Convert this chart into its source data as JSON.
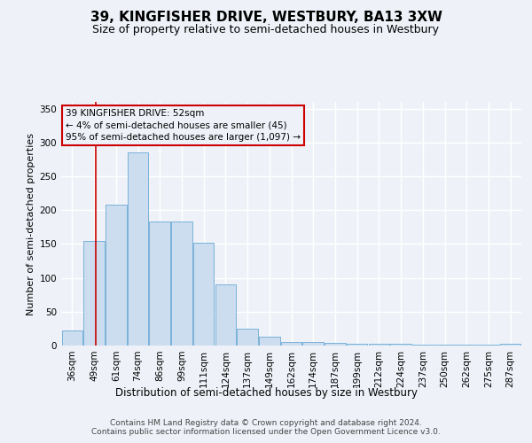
{
  "title": "39, KINGFISHER DRIVE, WESTBURY, BA13 3XW",
  "subtitle": "Size of property relative to semi-detached houses in Westbury",
  "xlabel": "Distribution of semi-detached houses by size in Westbury",
  "ylabel": "Number of semi-detached properties",
  "footer1": "Contains HM Land Registry data © Crown copyright and database right 2024.",
  "footer2": "Contains public sector information licensed under the Open Government Licence v3.0.",
  "annotation_line1": "39 KINGFISHER DRIVE: 52sqm",
  "annotation_line2": "← 4% of semi-detached houses are smaller (45)",
  "annotation_line3": "95% of semi-detached houses are larger (1,097) →",
  "bar_labels": [
    "36sqm",
    "49sqm",
    "61sqm",
    "74sqm",
    "86sqm",
    "99sqm",
    "111sqm",
    "124sqm",
    "137sqm",
    "149sqm",
    "162sqm",
    "174sqm",
    "187sqm",
    "199sqm",
    "212sqm",
    "224sqm",
    "237sqm",
    "250sqm",
    "262sqm",
    "275sqm",
    "287sqm"
  ],
  "bar_values": [
    22,
    155,
    208,
    285,
    183,
    183,
    152,
    90,
    25,
    13,
    5,
    5,
    4,
    2,
    2,
    2,
    1,
    1,
    1,
    1,
    2
  ],
  "bar_color": "#ccddf0",
  "bar_edge_color": "#6aaad4",
  "background_color": "#eef2f8",
  "grid_color": "#ffffff",
  "vline_x": 1.08,
  "vline_color": "#cc0000",
  "ylim": [
    0,
    360
  ],
  "yticks": [
    0,
    50,
    100,
    150,
    200,
    250,
    300,
    350
  ],
  "title_fontsize": 11,
  "subtitle_fontsize": 9,
  "ylabel_fontsize": 8,
  "xlabel_fontsize": 8.5,
  "tick_fontsize": 7.5,
  "ann_fontsize": 7.5,
  "footer_fontsize": 6.5
}
